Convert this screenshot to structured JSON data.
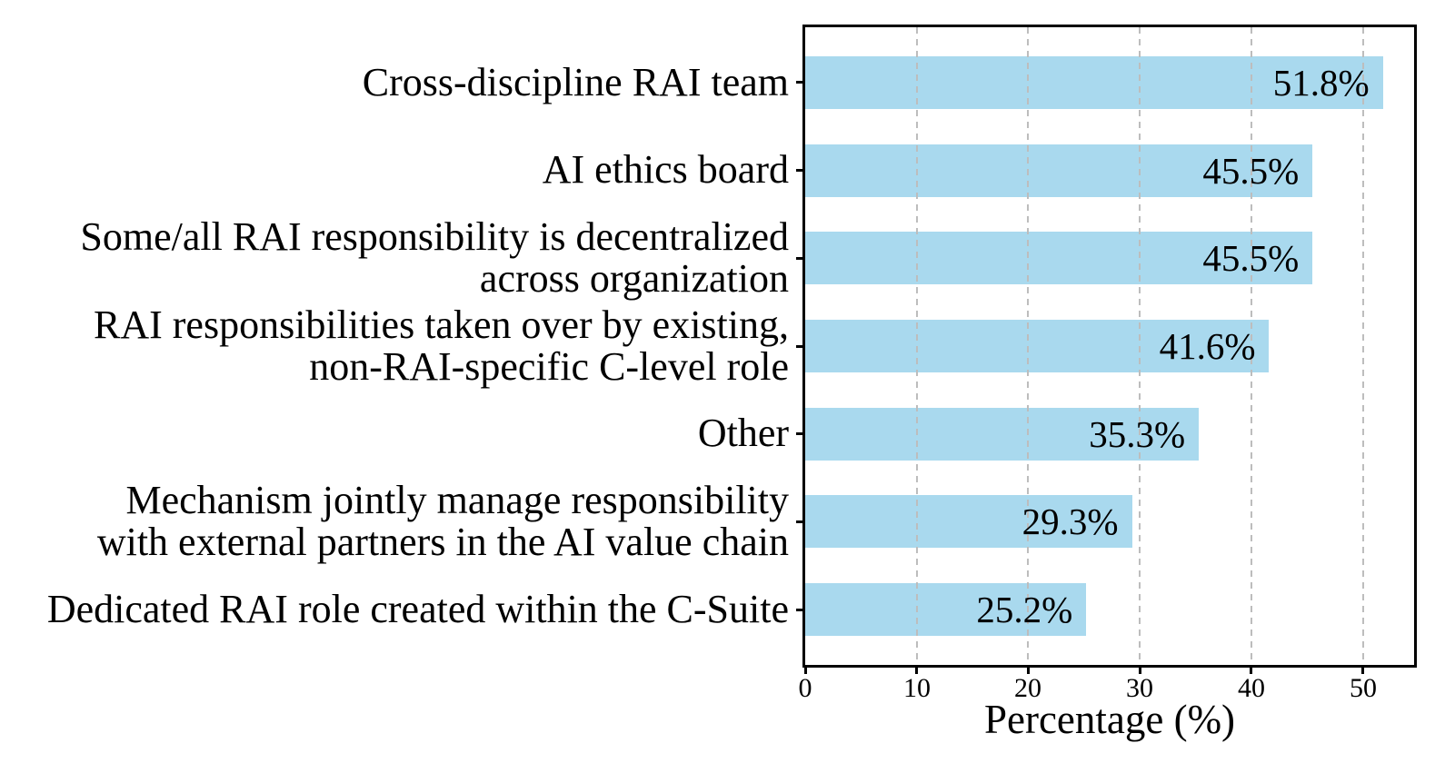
{
  "chart_data": {
    "type": "bar",
    "orientation": "horizontal",
    "title": "",
    "xlabel": "Percentage (%)",
    "ylabel": "",
    "categories": [
      "Cross-discipline RAI team",
      "AI ethics board",
      "Some/all RAI responsibility is decentralized\nacross organization",
      "RAI responsibilities taken over by existing,\nnon-RAI-specific C-level role",
      "Other",
      "Mechanism jointly manage responsibility\nwith external partners in the AI value chain",
      "Dedicated RAI role created within the C-Suite"
    ],
    "values": [
      51.8,
      45.5,
      45.5,
      41.6,
      35.3,
      29.3,
      25.2
    ],
    "value_labels": [
      "51.8%",
      "45.5%",
      "45.5%",
      "41.6%",
      "35.3%",
      "29.3%",
      "25.2%"
    ],
    "x_ticks": [
      0,
      10,
      20,
      30,
      40,
      50
    ],
    "x_tick_labels": [
      "0",
      "10",
      "20",
      "30",
      "40",
      "50"
    ],
    "gridline_values": [
      10,
      20,
      30,
      40,
      50
    ],
    "xlim": [
      0,
      54.6
    ],
    "grid": "vertical dashed, drawn above bars",
    "legend": "none",
    "colors": {
      "bar_fill": "#A9D9EE",
      "grid_line": "#bdbdbd",
      "axis_spine": "#000000",
      "text": "#000000",
      "background": "#ffffff"
    }
  }
}
